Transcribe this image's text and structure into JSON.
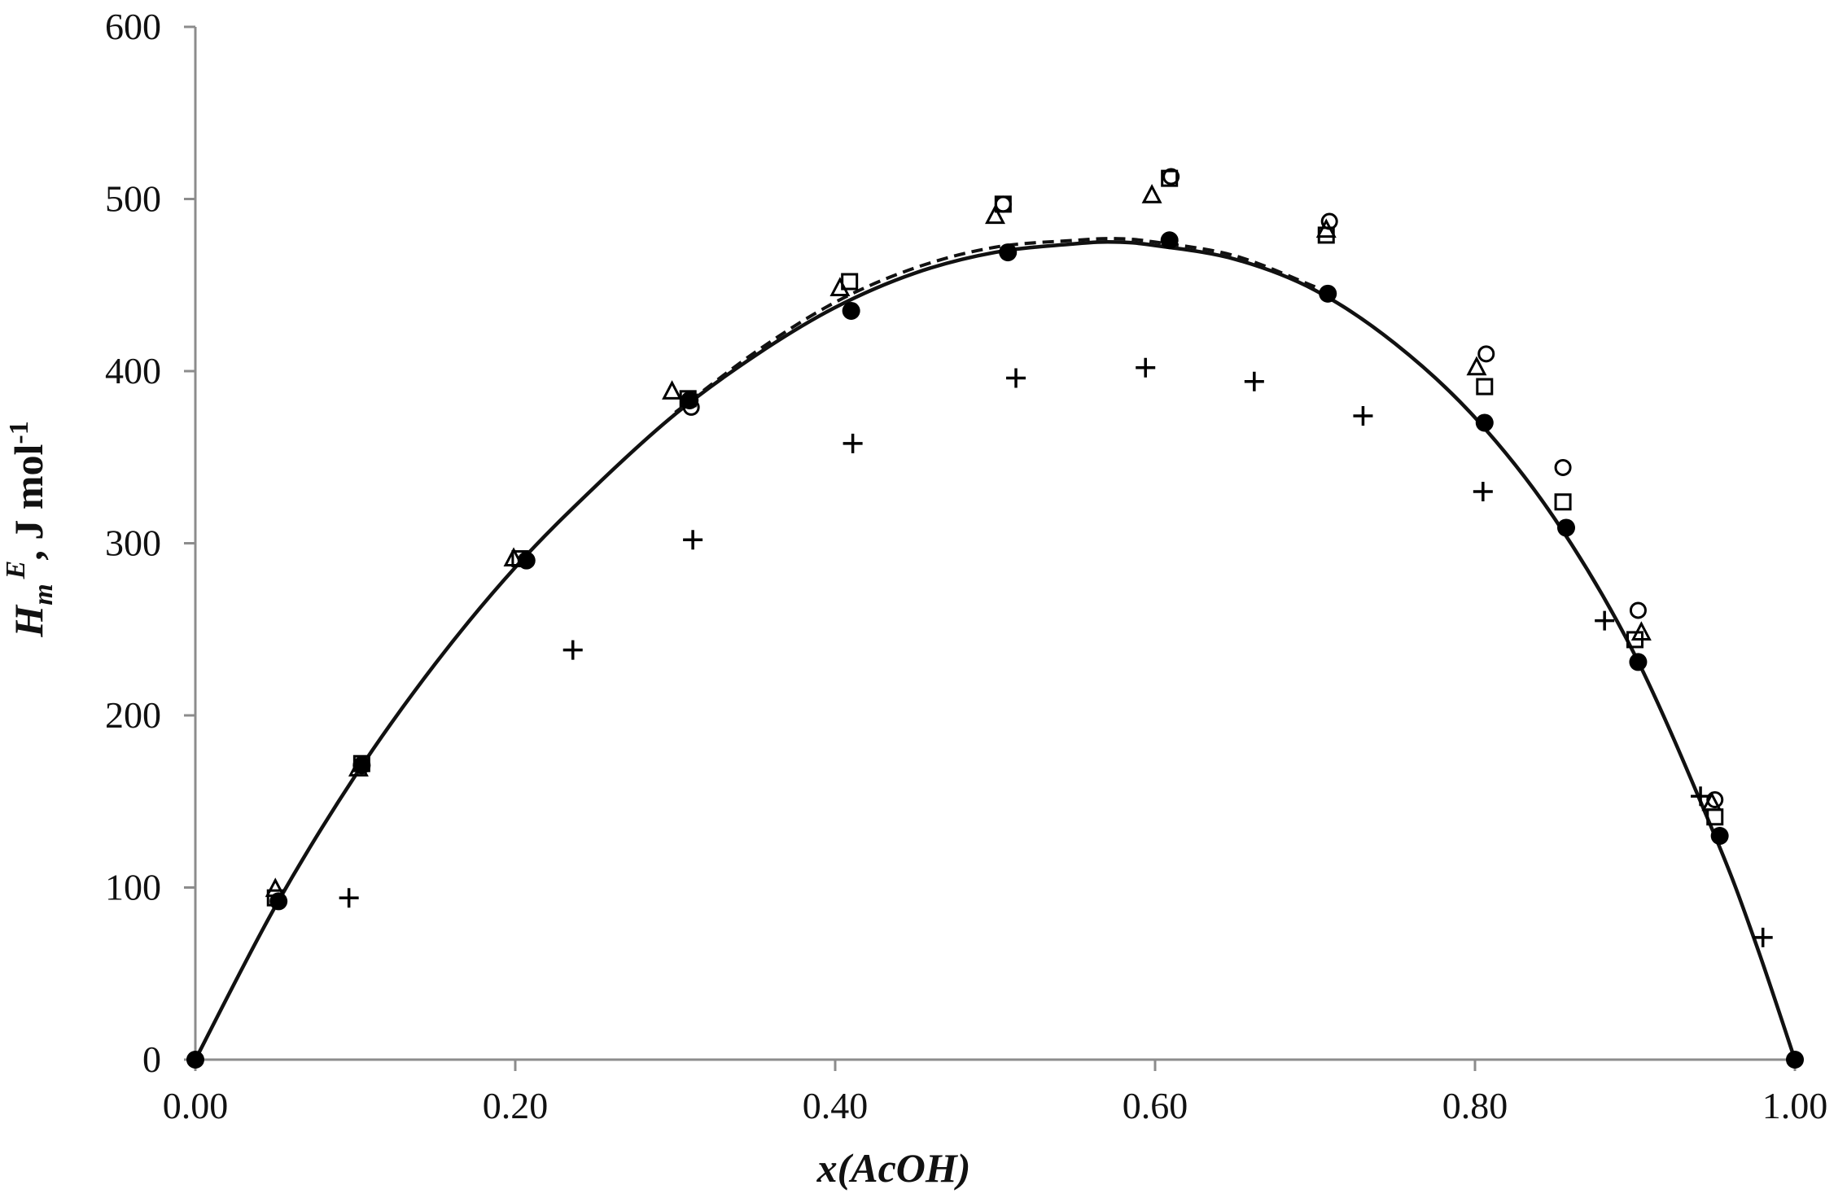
{
  "chart_data": {
    "type": "scatter",
    "xlabel": "x(AcOH)",
    "ylabel": {
      "main": "H",
      "sub": "m",
      "sup": "E",
      "unit": ", J mol",
      "unit_sup": "-1"
    },
    "xlim": [
      0.0,
      1.0
    ],
    "ylim": [
      0,
      600
    ],
    "x_ticks": [
      "0.00",
      "0.20",
      "0.40",
      "0.60",
      "0.80",
      "1.00"
    ],
    "y_ticks": [
      "0",
      "100",
      "200",
      "300",
      "400",
      "500",
      "600"
    ],
    "grid": false,
    "series": [
      {
        "marker": "filled-circle",
        "x": [
          0.0,
          0.052,
          0.104,
          0.207,
          0.309,
          0.41,
          0.508,
          0.609,
          0.708,
          0.806,
          0.857,
          0.902,
          0.953,
          1.0
        ],
        "y": [
          0,
          92,
          171,
          290,
          383,
          435,
          469,
          476,
          445,
          370,
          309,
          231,
          130,
          0
        ]
      },
      {
        "marker": "open-circle",
        "x": [
          0.31,
          0.505,
          0.61,
          0.709,
          0.807,
          0.855,
          0.902,
          0.95
        ],
        "y": [
          379,
          497,
          513,
          487,
          410,
          344,
          261,
          151
        ]
      },
      {
        "marker": "open-square",
        "x": [
          0.05,
          0.104,
          0.203,
          0.308,
          0.409,
          0.505,
          0.609,
          0.707,
          0.806,
          0.855,
          0.9,
          0.95
        ],
        "y": [
          94,
          172,
          291,
          384,
          452,
          497,
          512,
          479,
          391,
          324,
          244,
          141
        ]
      },
      {
        "marker": "open-triangle",
        "x": [
          0.05,
          0.102,
          0.199,
          0.298,
          0.403,
          0.5,
          0.598,
          0.707,
          0.801,
          0.904,
          0.948
        ],
        "y": [
          99,
          169,
          291,
          388,
          448,
          490,
          502,
          482,
          402,
          248,
          149
        ]
      },
      {
        "marker": "plus",
        "x": [
          0.096,
          0.236,
          0.311,
          0.411,
          0.513,
          0.594,
          0.662,
          0.73,
          0.805,
          0.881,
          0.941,
          0.98
        ],
        "y": [
          94,
          238,
          302,
          358,
          396,
          402,
          394,
          374,
          330,
          255,
          153,
          71
        ]
      },
      {
        "line": "solid",
        "x": [
          0.0,
          0.05,
          0.1,
          0.15,
          0.2,
          0.25,
          0.3,
          0.35,
          0.4,
          0.45,
          0.5,
          0.55,
          0.575,
          0.6,
          0.65,
          0.7,
          0.75,
          0.8,
          0.85,
          0.9,
          0.95,
          0.975,
          1.0
        ],
        "y": [
          0,
          89,
          165,
          230,
          286,
          333,
          375,
          409,
          437,
          457,
          469,
          474,
          475,
          473,
          465,
          447,
          416,
          373,
          314,
          235,
          130,
          69,
          0
        ]
      },
      {
        "line": "dashed",
        "x": [
          0.3,
          0.35,
          0.4,
          0.45,
          0.5,
          0.55,
          0.575,
          0.6,
          0.65,
          0.7
        ],
        "y": [
          376,
          411,
          440,
          460,
          472,
          476,
          477,
          475,
          467,
          449
        ]
      }
    ]
  }
}
